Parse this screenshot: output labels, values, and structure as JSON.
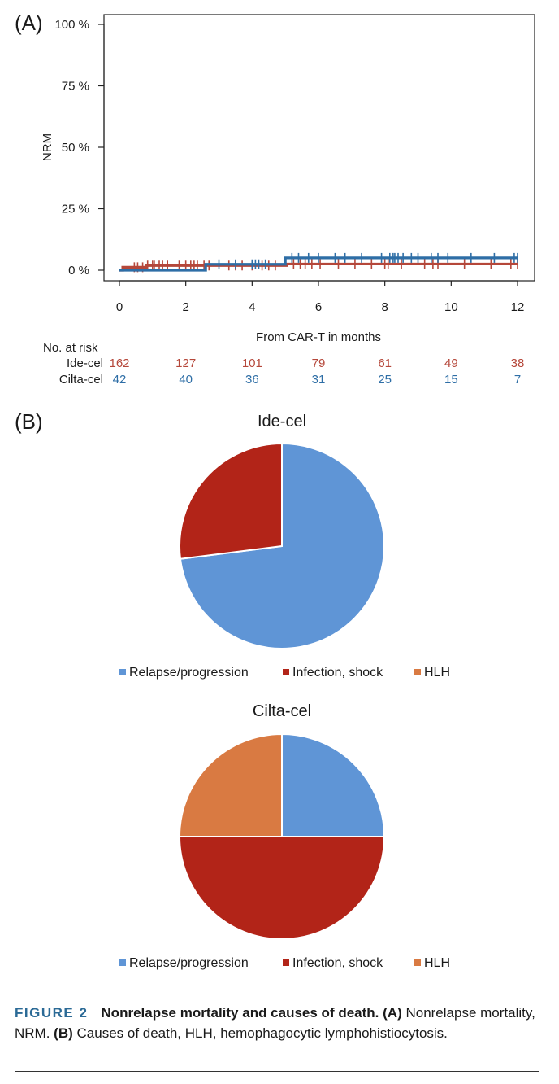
{
  "colors": {
    "ide_cel": "#b5473a",
    "cilta_cel": "#2e6ea6",
    "relapse": "#5f95d6",
    "infection": "#b22418",
    "hlh": "#d97a42"
  },
  "panel_a_label": "(A)",
  "panel_b_label": "(B)",
  "risk_table": {
    "header": "No. at risk",
    "rows": [
      {
        "name": "Ide-cel",
        "values": [
          "162",
          "127",
          "101",
          "79",
          "61",
          "49",
          "38"
        ]
      },
      {
        "name": "Cilta-cel",
        "values": [
          "42",
          "40",
          "36",
          "31",
          "25",
          "15",
          "7"
        ]
      }
    ]
  },
  "caption": {
    "figure_label": "FIGURE 2",
    "title": "Nonrelapse mortality and causes of death.",
    "a_marker": "(A)",
    "a_text": " Nonrelapse mortality, NRM. ",
    "b_marker": "(B)",
    "b_text": " Causes of death, HLH, hemophagocytic lymphohistiocytosis."
  },
  "chart_data": [
    {
      "type": "line",
      "xlabel": "From CAR-T in months",
      "ylabel": "NRM",
      "xlim": [
        0,
        12
      ],
      "ylim": [
        0,
        100
      ],
      "xticks": [
        0,
        2,
        4,
        6,
        8,
        10,
        12
      ],
      "yticks": [
        0,
        25,
        50,
        75,
        100
      ],
      "ytick_labels": [
        "0 %",
        "25 %",
        "50 %",
        "75 %",
        "100 %"
      ],
      "grid": false,
      "step": true,
      "series": [
        {
          "name": "Ide-cel",
          "x": [
            0,
            0.1,
            0.8,
            4.8,
            5.05,
            12
          ],
          "y": [
            0,
            1.2,
            1.9,
            1.9,
            2.5,
            2.5
          ],
          "censor_x": [
            0.45,
            0.55,
            0.7,
            0.85,
            1.0,
            1.05,
            1.2,
            1.3,
            1.45,
            1.8,
            2.0,
            2.15,
            2.25,
            2.35,
            2.55,
            2.7,
            3.3,
            3.5,
            3.7,
            4.0,
            4.3,
            4.5,
            4.7,
            5.25,
            5.45,
            5.6,
            5.8,
            6.05,
            6.6,
            7.1,
            7.6,
            8.0,
            8.1,
            8.5,
            9.2,
            9.45,
            9.6,
            10.4,
            11.2,
            11.8,
            12.0
          ]
        },
        {
          "name": "Cilta-cel",
          "x": [
            0,
            2.6,
            5.0,
            12
          ],
          "y": [
            0,
            2.4,
            5.0,
            5.0
          ],
          "censor_x": [
            3.0,
            3.5,
            4.0,
            4.1,
            4.2,
            4.4,
            5.2,
            5.4,
            5.7,
            6.0,
            6.5,
            6.8,
            7.3,
            7.9,
            8.15,
            8.25,
            8.3,
            8.4,
            8.55,
            8.8,
            9.0,
            9.4,
            9.6,
            9.9,
            10.6,
            11.3,
            11.9,
            12.0
          ]
        }
      ]
    },
    {
      "type": "pie",
      "title": "Ide-cel",
      "categories": [
        "Relapse/progression",
        "Infection, shock",
        "HLH"
      ],
      "values": [
        73,
        27,
        0
      ]
    },
    {
      "type": "pie",
      "title": "Cilta-cel",
      "categories": [
        "Relapse/progression",
        "Infection, shock",
        "HLH"
      ],
      "values": [
        25,
        50,
        25
      ]
    }
  ]
}
